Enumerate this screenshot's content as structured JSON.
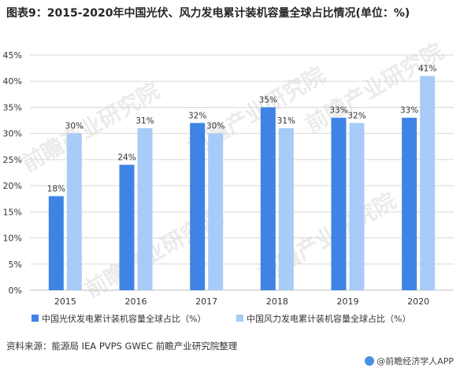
{
  "title": "图表9：2015-2020年中国光伏、风力发电累计装机容量全球占比情况(单位：%)",
  "source": "资料来源：能源局 IEA PVPS GWEC 前瞻产业研究院整理",
  "brand": "@前瞻经济学人APP",
  "watermark": "前瞻产业研究院",
  "colors": {
    "solar": "#3f84e5",
    "wind": "#a8cbf7",
    "grid": "#d9d9d9"
  },
  "chart_data": {
    "type": "bar",
    "categories": [
      "2015",
      "2016",
      "2017",
      "2018",
      "2019",
      "2020"
    ],
    "series": [
      {
        "name": "中国光伏发电累计装机容量全球占比（%）",
        "values": [
          18,
          24,
          32,
          35,
          33,
          33
        ],
        "labels": [
          "18%",
          "24%",
          "32%",
          "35%",
          "33%",
          "33%"
        ]
      },
      {
        "name": "中国风力发电累计装机容量全球占比（%）",
        "values": [
          30,
          31,
          30,
          31,
          32,
          41
        ],
        "labels": [
          "30%",
          "31%",
          "30%",
          "31%",
          "32%",
          "41%"
        ]
      }
    ],
    "ylim": [
      0,
      45
    ],
    "yticks": [
      "0%",
      "5%",
      "10%",
      "15%",
      "20%",
      "25%",
      "30%",
      "35%",
      "40%",
      "45%"
    ],
    "grid": true,
    "legend": "bottom"
  }
}
